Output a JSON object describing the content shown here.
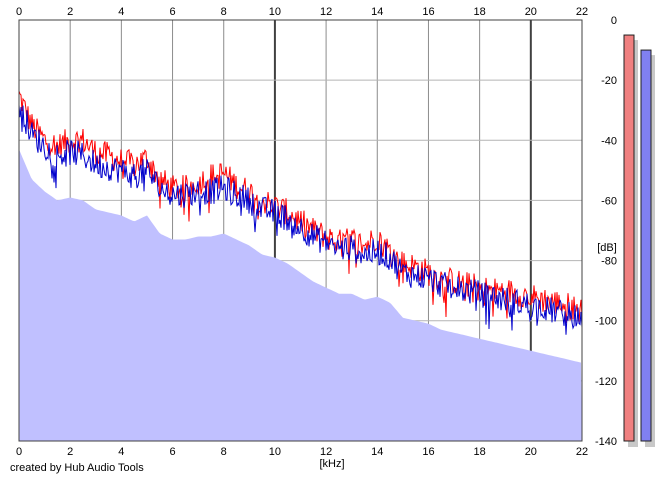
{
  "footer": "created by Hub Audio Tools",
  "chart_data": {
    "type": "area",
    "xlabel": "[kHz]",
    "ylabel": "[dB]",
    "xlim": [
      0,
      22
    ],
    "ylim": [
      -140,
      0
    ],
    "xticks": [
      0,
      2,
      4,
      6,
      8,
      10,
      12,
      14,
      16,
      18,
      20,
      22
    ],
    "yticks": [
      0,
      -20,
      -40,
      -60,
      -80,
      -100,
      -120,
      -140
    ],
    "grid": true,
    "background_fill": "#c0c0ff",
    "series": [
      {
        "color": "#ff0000",
        "x": [
          0,
          0.25,
          0.5,
          1,
          1.5,
          2,
          2.5,
          3,
          3.5,
          4,
          4.5,
          5,
          5.5,
          6,
          6.5,
          7,
          7.5,
          8,
          8.5,
          9,
          9.5,
          10,
          10.5,
          11,
          11.5,
          12,
          12.5,
          13,
          13.5,
          14,
          14.5,
          15,
          15.5,
          16,
          16.5,
          17,
          17.5,
          18,
          18.5,
          19,
          19.5,
          20,
          20.5,
          21,
          21.5,
          22
        ],
        "values": [
          -25,
          -30,
          -35,
          -40,
          -42,
          -40,
          -40,
          -44,
          -45,
          -47,
          -48,
          -46,
          -53,
          -56,
          -56,
          -54,
          -52,
          -51,
          -55,
          -57,
          -60,
          -62,
          -64,
          -67,
          -70,
          -72,
          -74,
          -73,
          -75,
          -72,
          -77,
          -81,
          -82,
          -84,
          -86,
          -87,
          -88,
          -89,
          -90,
          -90,
          -91,
          -92,
          -93,
          -94,
          -95,
          -97
        ]
      },
      {
        "color": "#0000cc",
        "x": [
          0,
          0.25,
          0.5,
          1,
          1.5,
          2,
          2.5,
          3,
          3.5,
          4,
          4.5,
          5,
          5.5,
          6,
          6.5,
          7,
          7.5,
          8,
          8.5,
          9,
          9.5,
          10,
          10.5,
          11,
          11.5,
          12,
          12.5,
          13,
          13.5,
          14,
          14.5,
          15,
          15.5,
          16,
          16.5,
          17,
          17.5,
          18,
          18.5,
          19,
          19.5,
          20,
          20.5,
          21,
          21.5,
          22
        ],
        "values": [
          -28,
          -33,
          -38,
          -42,
          -45,
          -44,
          -45,
          -48,
          -49,
          -50,
          -52,
          -50,
          -56,
          -58,
          -58,
          -57,
          -57,
          -56,
          -58,
          -60,
          -63,
          -64,
          -66,
          -69,
          -72,
          -74,
          -76,
          -76,
          -78,
          -77,
          -79,
          -84,
          -85,
          -86,
          -88,
          -89,
          -90,
          -91,
          -92,
          -93,
          -94,
          -95,
          -96,
          -97,
          -98,
          -99
        ]
      }
    ],
    "meters": [
      {
        "color": "#f08080",
        "value": -5
      },
      {
        "color": "#8080f0",
        "value": -10
      }
    ]
  }
}
